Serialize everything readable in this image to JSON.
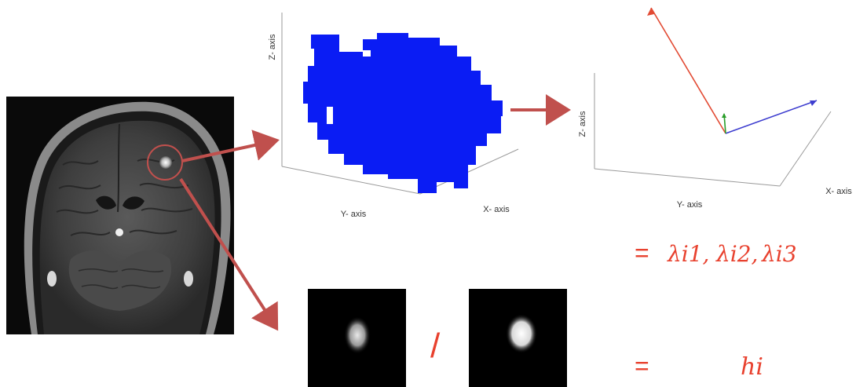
{
  "colors": {
    "arrow": "#c0504d",
    "voxel": "#0a1cf4",
    "math_red": "#e8412e",
    "eigen_red": "#e24a33",
    "eigen_blue": "#3d3dcf",
    "eigen_green": "#2a9d2a",
    "axis_line": "#9a9a9a"
  },
  "mri_panel": {
    "description_icon": "brain-mri-coronal-image"
  },
  "voxel_plot": {
    "z_label": "Z- axis",
    "y_label": "Y- axis",
    "x_label": "X- axis"
  },
  "eigen_plot": {
    "z_label": "Z- axis",
    "y_label": "Y- axis",
    "x_label": "X- axis"
  },
  "formula_eigen": {
    "equals": "=",
    "lambda1": "λi1,",
    "lambda2": "λi2,",
    "lambda3": "λi3"
  },
  "ratio": {
    "divider": "/"
  },
  "formula_h": {
    "equals": "=",
    "h": "hi"
  }
}
